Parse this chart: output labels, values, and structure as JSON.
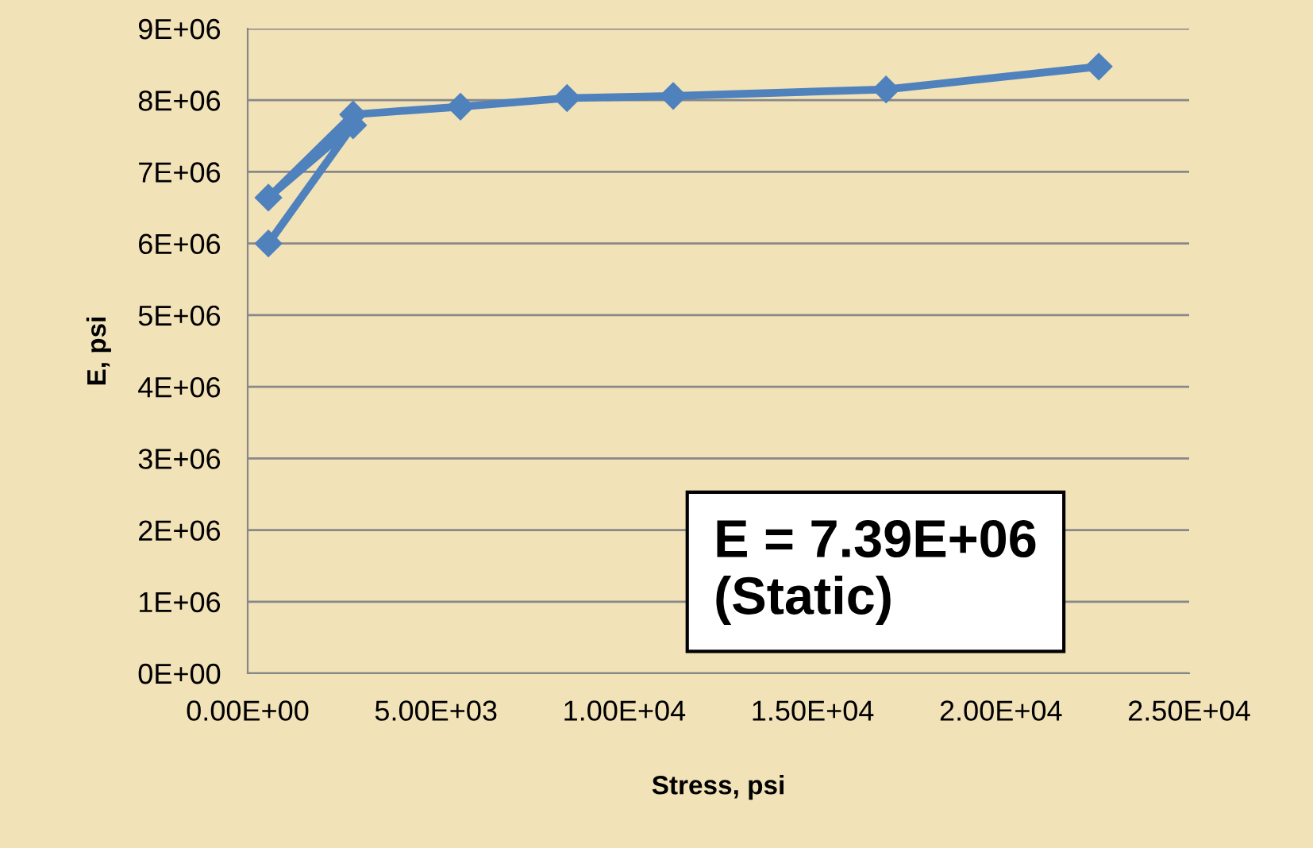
{
  "chart_data": {
    "type": "line",
    "xlabel": "Stress, psi",
    "ylabel": "E, psi",
    "series": [
      {
        "color": "#4f81bd",
        "x": [
          550,
          2800,
          550,
          2800,
          5650,
          8480,
          11300,
          16950,
          22600
        ],
        "values": [
          6000000,
          7650000,
          6640000,
          7800000,
          7910000,
          8030000,
          8060000,
          8150000,
          8470000
        ]
      }
    ],
    "xlim": [
      0,
      25000
    ],
    "xticks": [
      {
        "value": 0,
        "label": "0.00E+00"
      },
      {
        "value": 5000,
        "label": "5.00E+03"
      },
      {
        "value": 10000,
        "label": "1.00E+04"
      },
      {
        "value": 15000,
        "label": "1.50E+04"
      },
      {
        "value": 20000,
        "label": "2.00E+04"
      },
      {
        "value": 25000,
        "label": "2.50E+04"
      }
    ],
    "ylim": [
      0,
      9000000
    ],
    "yticks": [
      {
        "value": 0,
        "label": "0E+00"
      },
      {
        "value": 1000000,
        "label": "1E+06"
      },
      {
        "value": 2000000,
        "label": "2E+06"
      },
      {
        "value": 3000000,
        "label": "3E+06"
      },
      {
        "value": 4000000,
        "label": "4E+06"
      },
      {
        "value": 5000000,
        "label": "5E+06"
      },
      {
        "value": 6000000,
        "label": "6E+06"
      },
      {
        "value": 7000000,
        "label": "7E+06"
      },
      {
        "value": 8000000,
        "label": "8E+06"
      },
      {
        "value": 9000000,
        "label": "9E+06"
      }
    ],
    "grid": "y",
    "marker": "diamond",
    "line_style": "solid",
    "legend": false,
    "annotations": [
      "E = 7.39E+06\n(Static)"
    ]
  }
}
